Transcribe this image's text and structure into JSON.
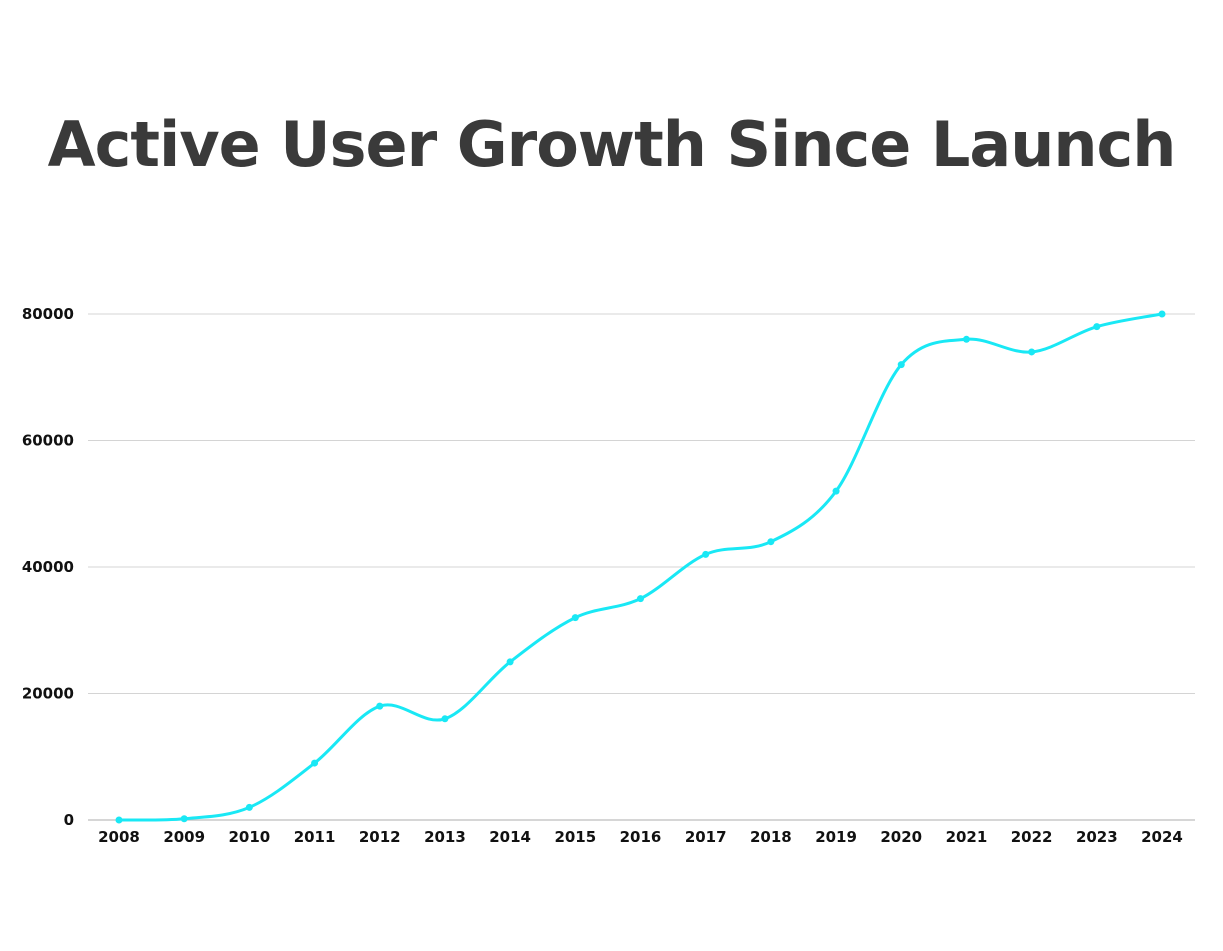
{
  "chart_data": {
    "type": "line",
    "title": "Active User Growth Since Launch",
    "xlabel": "",
    "ylabel": "",
    "categories": [
      "2008",
      "2009",
      "2010",
      "2011",
      "2012",
      "2013",
      "2014",
      "2015",
      "2016",
      "2017",
      "2018",
      "2019",
      "2020",
      "2021",
      "2022",
      "2023",
      "2024"
    ],
    "series": [
      {
        "values": [
          0,
          200,
          2000,
          9000,
          18000,
          16000,
          25000,
          32000,
          35000,
          42000,
          44000,
          52000,
          72000,
          76000,
          74000,
          78000,
          80000
        ]
      }
    ],
    "ylim": [
      0,
      80000
    ],
    "yticks": [
      0,
      20000,
      40000,
      60000,
      80000
    ],
    "grid": true,
    "smooth": true,
    "legend": "none",
    "colors": {
      "line": "#19e8f5",
      "grid": "#d4d4d4",
      "axis": "#bdbdbd",
      "title": "#3a3a3a",
      "ticks": "#111111"
    }
  }
}
